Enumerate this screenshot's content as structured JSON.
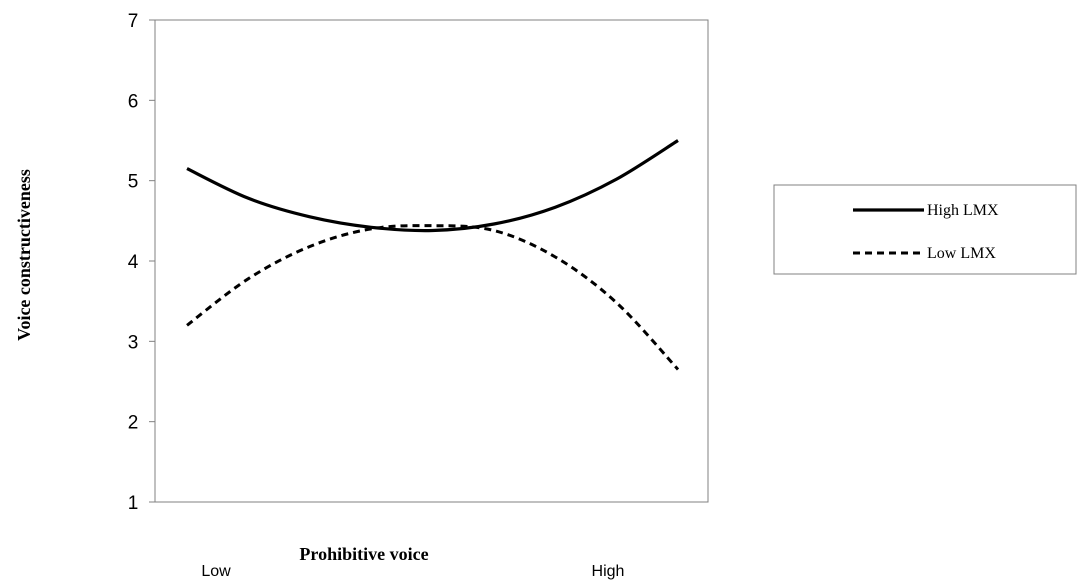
{
  "chart_data": {
    "type": "line",
    "title": "",
    "xlabel": "Prohibitive voice",
    "ylabel": "Voice constructiveness",
    "x_categories": [
      "Low",
      "High"
    ],
    "x": [
      0,
      0.125,
      0.25,
      0.375,
      0.5,
      0.625,
      0.75,
      0.875,
      1
    ],
    "ylim": [
      1,
      7
    ],
    "yticks": [
      1,
      2,
      3,
      4,
      5,
      6,
      7
    ],
    "grid": false,
    "legend_position": "right",
    "series": [
      {
        "name": "High LMX",
        "line_style": "solid",
        "color": "#000000",
        "values": [
          5.15,
          4.78,
          4.55,
          4.42,
          4.38,
          4.46,
          4.67,
          5.02,
          5.5
        ]
      },
      {
        "name": "Low LMX",
        "line_style": "dashed",
        "color": "#000000",
        "values": [
          3.2,
          3.78,
          4.18,
          4.4,
          4.44,
          4.38,
          4.05,
          3.48,
          2.65
        ]
      }
    ]
  }
}
